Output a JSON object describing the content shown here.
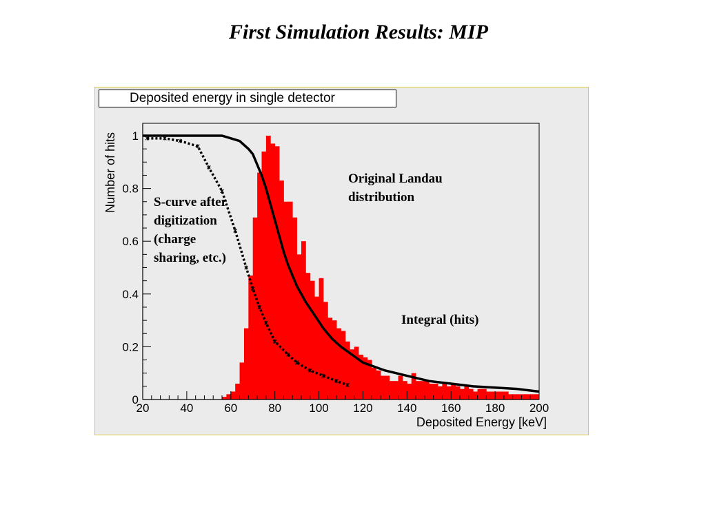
{
  "slide": {
    "title": "First Simulation Results: MIP"
  },
  "chart_data": {
    "type": "bar",
    "title": "Deposited energy in single detector",
    "xlabel": "Deposited Energy [keV]",
    "ylabel": "Number of hits",
    "xlim": [
      20,
      200
    ],
    "ylim": [
      0,
      1.03
    ],
    "x_ticks": [
      20,
      40,
      60,
      80,
      100,
      120,
      140,
      160,
      180,
      200
    ],
    "y_ticks": [
      0,
      0.2,
      0.4,
      0.6,
      0.8,
      1
    ],
    "y_tick_labels": [
      "0",
      "0.2",
      "0.4",
      "0.6",
      "0.8",
      "1"
    ],
    "grid": false,
    "colors": {
      "histogram": "#ff0000",
      "frame": "#d8cf3a",
      "background": "#ebebeb"
    },
    "histogram": {
      "bin_start": 56,
      "bin_width": 2,
      "values": [
        0.01,
        0.02,
        0.03,
        0.06,
        0.14,
        0.27,
        0.47,
        0.69,
        0.86,
        0.94,
        1.0,
        0.97,
        0.96,
        0.83,
        0.75,
        0.75,
        0.69,
        0.55,
        0.6,
        0.48,
        0.45,
        0.39,
        0.46,
        0.37,
        0.31,
        0.3,
        0.27,
        0.26,
        0.22,
        0.19,
        0.2,
        0.17,
        0.16,
        0.15,
        0.12,
        0.11,
        0.09,
        0.09,
        0.07,
        0.07,
        0.09,
        0.07,
        0.06,
        0.1,
        0.07,
        0.07,
        0.07,
        0.06,
        0.06,
        0.05,
        0.06,
        0.05,
        0.06,
        0.05,
        0.04,
        0.05,
        0.04,
        0.03,
        0.04,
        0.04,
        0.03,
        0.03,
        0.03,
        0.03,
        0.03,
        0.02,
        0.02,
        0.02,
        0.02,
        0.02,
        0.02,
        0.02
      ]
    },
    "integral_curve": {
      "x": [
        20,
        30,
        40,
        50,
        56,
        60,
        64,
        68,
        70,
        72,
        74,
        76,
        78,
        80,
        82,
        84,
        86,
        88,
        90,
        94,
        98,
        102,
        106,
        110,
        115,
        120,
        130,
        140,
        150,
        160,
        170,
        180,
        190,
        200
      ],
      "y": [
        1.0,
        1.0,
        1.0,
        1.0,
        1.0,
        0.99,
        0.98,
        0.95,
        0.93,
        0.89,
        0.85,
        0.8,
        0.74,
        0.68,
        0.62,
        0.56,
        0.51,
        0.47,
        0.43,
        0.37,
        0.32,
        0.27,
        0.23,
        0.2,
        0.17,
        0.14,
        0.11,
        0.09,
        0.07,
        0.06,
        0.05,
        0.045,
        0.04,
        0.03
      ]
    },
    "s_curve": {
      "x": [
        22,
        30,
        37,
        45,
        50,
        56,
        62,
        67,
        70,
        73,
        76,
        80,
        86,
        90,
        96,
        102,
        108,
        113
      ],
      "y": [
        0.99,
        0.99,
        0.98,
        0.96,
        0.88,
        0.79,
        0.64,
        0.5,
        0.42,
        0.35,
        0.29,
        0.22,
        0.17,
        0.14,
        0.11,
        0.09,
        0.07,
        0.055
      ]
    },
    "annotations": {
      "s_curve": [
        "S-curve after",
        "digitization",
        "(charge",
        "sharing, etc.)"
      ],
      "landau": [
        "Original Landau",
        "distribution"
      ],
      "integral": [
        "Integral (hits)"
      ]
    }
  }
}
